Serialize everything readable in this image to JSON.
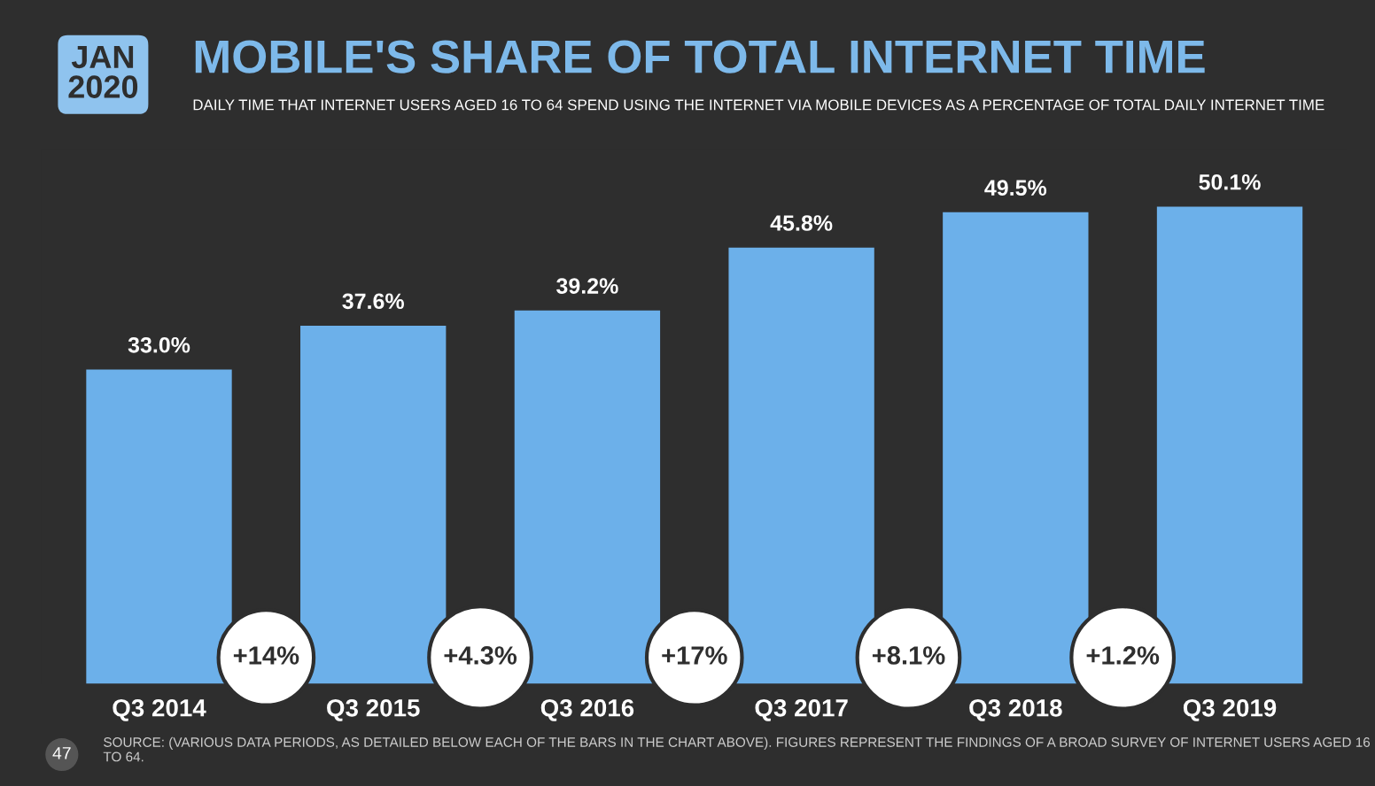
{
  "chart_data": {
    "type": "bar",
    "title": "MOBILE'S SHARE OF TOTAL INTERNET TIME",
    "subtitle": "DAILY TIME THAT INTERNET USERS AGED 16 TO 64 SPEND USING THE INTERNET VIA MOBILE DEVICES AS A PERCENTAGE OF TOTAL DAILY INTERNET TIME",
    "categories": [
      "Q3 2014",
      "Q3 2015",
      "Q3 2016",
      "Q3 2017",
      "Q3 2018",
      "Q3 2019"
    ],
    "values": [
      33.0,
      37.6,
      39.2,
      45.8,
      49.5,
      50.1
    ],
    "value_labels": [
      "33.0%",
      "37.6%",
      "39.2%",
      "45.8%",
      "49.5%",
      "50.1%"
    ],
    "color": "#6cb0ea",
    "annotations": [
      "JAN\n2020",
      "+14%",
      "+4.3%",
      "+17%",
      "+8.1%",
      "+1.2%",
      "SOURCE: (VARIOUS DATA PERIODS, AS DETAILED BELOW EACH OF THE BARS IN THE CHART ABOVE). FIGURES REPRESENT THE FINDINGS OF A BROAD SURVEY OF INTERNET USERS AGED 16 TO 64.",
      "47"
    ]
  }
}
